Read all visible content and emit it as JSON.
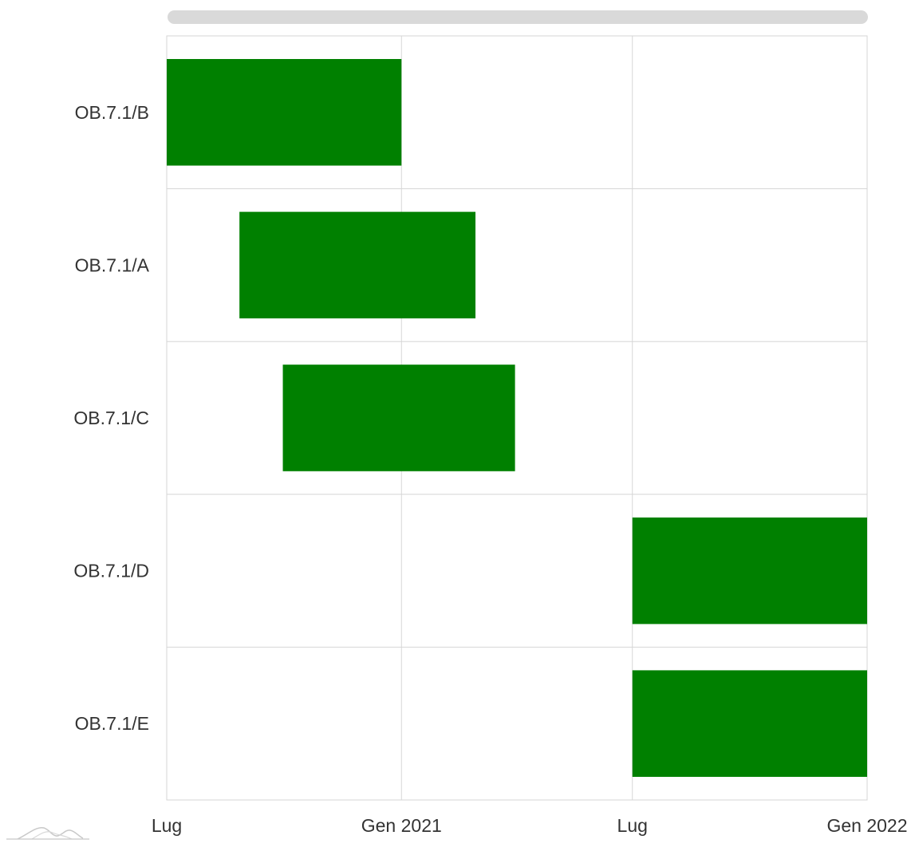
{
  "chart_data": {
    "type": "gantt",
    "orientation": "horizontal",
    "categories": [
      "OB.7.1/B",
      "OB.7.1/A",
      "OB.7.1/C",
      "OB.7.1/D",
      "OB.7.1/E"
    ],
    "x_tick_labels": [
      "Lug",
      "Gen 2021",
      "Lug",
      "Gen 2022"
    ],
    "x_ticks": [
      "2020-07-01",
      "2021-01-01",
      "2021-07-01",
      "2022-01-01"
    ],
    "xlim": [
      "2020-07-01",
      "2022-01-01"
    ],
    "series": [
      {
        "color": "#008000",
        "tasks": [
          {
            "category": "OB.7.1/B",
            "start": "2020-07-01",
            "end": "2021-01-01"
          },
          {
            "category": "OB.7.1/A",
            "start": "2020-08-27",
            "end": "2021-02-28"
          },
          {
            "category": "OB.7.1/C",
            "start": "2020-09-30",
            "end": "2021-03-31"
          },
          {
            "category": "OB.7.1/D",
            "start": "2021-07-01",
            "end": "2022-01-01"
          },
          {
            "category": "OB.7.1/E",
            "start": "2021-07-01",
            "end": "2022-01-01"
          }
        ]
      }
    ],
    "grid": true,
    "legend": "none",
    "scrollbar": "top"
  }
}
